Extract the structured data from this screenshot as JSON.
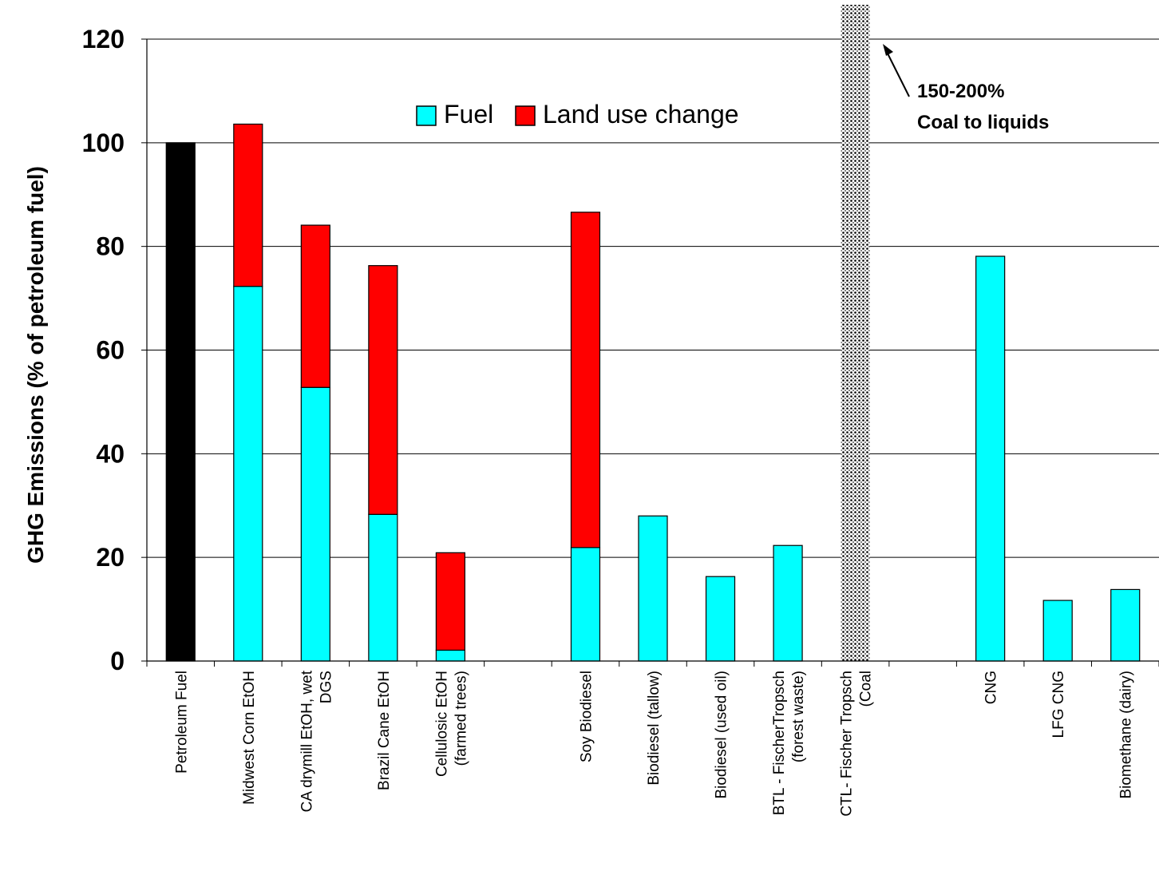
{
  "chart_data": {
    "type": "bar",
    "stacked": true,
    "ylabel": "GHG Emissions (% of petroleum fuel)",
    "ylim": [
      0,
      120
    ],
    "yticks": [
      0,
      20,
      40,
      60,
      80,
      100,
      120
    ],
    "grid": true,
    "legend_position": "top-center",
    "categories": [
      [
        "Petroleum Fuel"
      ],
      [
        "Midwest Corn EtOH"
      ],
      [
        "CA drymill EtOH, wet",
        "DGS"
      ],
      [
        "Brazil Cane EtOH"
      ],
      [
        "Cellulosic EtOH",
        "(farmed trees)"
      ],
      [
        ""
      ],
      [
        "Soy Biodiesel"
      ],
      [
        "Biodiesel (tallow)"
      ],
      [
        "Biodiesel (used oil)"
      ],
      [
        "BTL - FischerTropsch",
        "(forest waste)"
      ],
      [
        "CTL- Fischer Tropsch",
        "(Coal"
      ],
      [
        ""
      ],
      [
        "CNG"
      ],
      [
        "LFG CNG"
      ],
      [
        "Biomethane (dairy)"
      ]
    ],
    "series": [
      {
        "name": "Petroleum",
        "color": "#000000",
        "in_legend": false,
        "values": [
          100,
          0,
          0,
          0,
          0,
          0,
          0,
          0,
          0,
          0,
          0,
          0,
          0,
          0,
          0
        ]
      },
      {
        "name": "Fuel",
        "color": "#00FFFF",
        "in_legend": true,
        "values": [
          0,
          72.3,
          52.8,
          28.3,
          2.1,
          0,
          21.9,
          28,
          16.3,
          22.3,
          0,
          0,
          78.1,
          11.7,
          13.8
        ]
      },
      {
        "name": "Land use change",
        "color": "#FF0000",
        "in_legend": true,
        "values": [
          0,
          31.3,
          31.3,
          48,
          18.8,
          0,
          64.7,
          0,
          0,
          0,
          0,
          0,
          0,
          0,
          0
        ]
      }
    ],
    "ctl_bar": {
      "category_index": 10,
      "pattern": "dotted",
      "extends_beyond_axis": true
    },
    "annotation": {
      "lines": [
        "150-200%",
        "Coal to liquids"
      ]
    }
  }
}
